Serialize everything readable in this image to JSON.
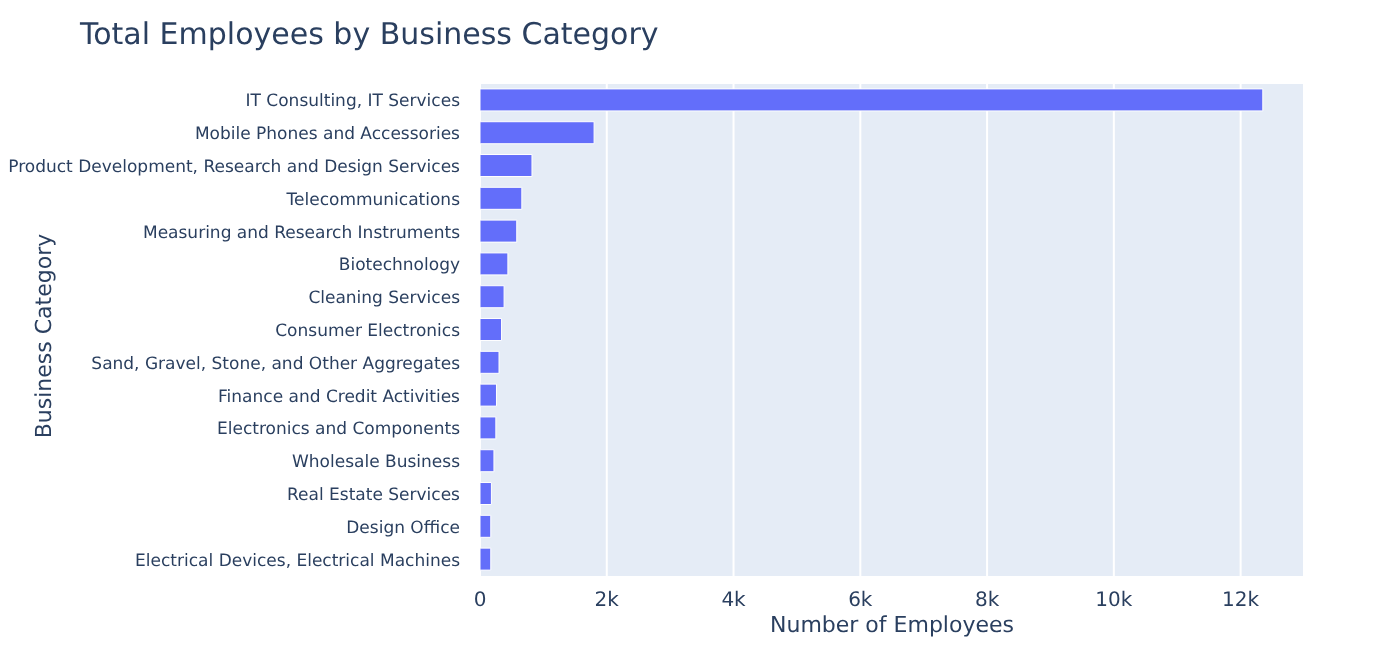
{
  "chart_data": {
    "type": "bar",
    "orientation": "horizontal",
    "title": "Total Employees by Business Category",
    "xlabel": "Number of Employees",
    "ylabel": "Business Category",
    "categories": [
      "IT Consulting, IT Services",
      "Mobile Phones and Accessories",
      "Product Development, Research and Design Services",
      "Telecommunications",
      "Measuring and Research Instruments",
      "Biotechnology",
      "Cleaning Services",
      "Consumer Electronics",
      "Sand, Gravel, Stone, and Other Aggregates",
      "Finance and Credit Activities",
      "Electronics and Components",
      "Wholesale Business",
      "Real Estate Services",
      "Design Office",
      "Electrical Devices, Electrical Machines"
    ],
    "values": [
      12350,
      1800,
      820,
      660,
      580,
      440,
      380,
      340,
      300,
      260,
      250,
      220,
      180,
      170,
      170
    ],
    "color": "#636efa",
    "xlim": [
      0,
      13000
    ],
    "xticks": [
      0,
      {
        "value": 2000,
        "label": "2k"
      },
      {
        "value": 4000,
        "label": "4k"
      },
      {
        "value": 6000,
        "label": "6k"
      },
      {
        "value": 8000,
        "label": "8k"
      },
      {
        "value": 10000,
        "label": "10k"
      },
      {
        "value": 12000,
        "label": "12k"
      }
    ],
    "grid": "x"
  }
}
